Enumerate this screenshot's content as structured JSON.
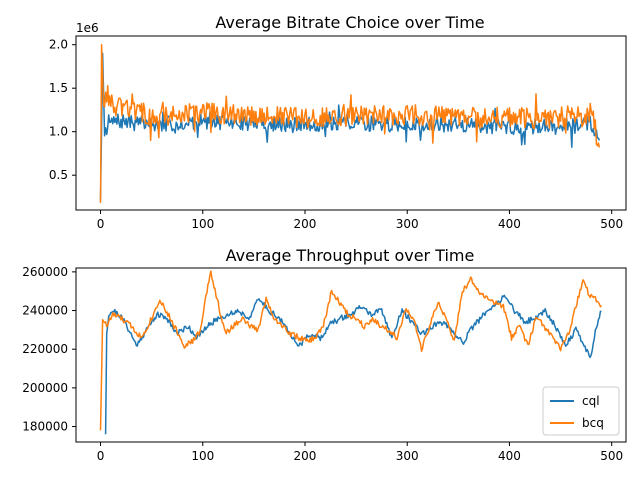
{
  "chart_data": [
    {
      "type": "line",
      "title": "Average Bitrate Choice over Time",
      "xlabel": "",
      "ylabel": "",
      "y_offset_label": "1e6",
      "xlim": [
        -24,
        514
      ],
      "ylim": [
        0.1,
        2.1
      ],
      "y_scale": 1000000,
      "xticks": [
        0,
        100,
        200,
        300,
        400,
        500
      ],
      "yticks": [
        0.5,
        1.0,
        1.5,
        2.0
      ],
      "ytick_labels": [
        "0.5",
        "1.0",
        "1.5",
        "2.0"
      ],
      "grid": false,
      "series": [
        {
          "name": "cql",
          "color": "#1f77b4",
          "base": [
            [
              0,
              0.22
            ],
            [
              2,
              1.9
            ],
            [
              4,
              1.0
            ],
            [
              8,
              1.1
            ],
            [
              20,
              1.12
            ],
            [
              50,
              1.08
            ],
            [
              100,
              1.12
            ],
            [
              150,
              1.1
            ],
            [
              200,
              1.08
            ],
            [
              250,
              1.1
            ],
            [
              300,
              1.08
            ],
            [
              350,
              1.08
            ],
            [
              400,
              1.06
            ],
            [
              450,
              1.06
            ],
            [
              480,
              1.1
            ],
            [
              488,
              0.9
            ]
          ],
          "amplitude": 0.09,
          "seed": 7
        },
        {
          "name": "bcq",
          "color": "#ff7f0e",
          "base": [
            [
              0,
              0.18
            ],
            [
              1,
              2.0
            ],
            [
              3,
              1.3
            ],
            [
              6,
              1.45
            ],
            [
              12,
              1.28
            ],
            [
              30,
              1.25
            ],
            [
              50,
              1.18
            ],
            [
              100,
              1.22
            ],
            [
              150,
              1.18
            ],
            [
              200,
              1.16
            ],
            [
              250,
              1.18
            ],
            [
              300,
              1.2
            ],
            [
              350,
              1.16
            ],
            [
              400,
              1.16
            ],
            [
              450,
              1.14
            ],
            [
              480,
              1.22
            ],
            [
              488,
              0.82
            ]
          ],
          "amplitude": 0.12,
          "seed": 13
        }
      ]
    },
    {
      "type": "line",
      "title": "Average Throughput over Time",
      "xlabel": "",
      "ylabel": "",
      "xlim": [
        -24,
        514
      ],
      "ylim": [
        172000,
        262000
      ],
      "xticks": [
        0,
        100,
        200,
        300,
        400,
        500
      ],
      "yticks": [
        180000,
        200000,
        220000,
        240000,
        260000
      ],
      "ytick_labels": [
        "180000",
        "200000",
        "220000",
        "240000",
        "260000"
      ],
      "legend": "lower-right",
      "grid": false,
      "series": [
        {
          "name": "cql",
          "color": "#1f77b4",
          "points": [
            [
              5,
              176000
            ],
            [
              6,
              228000
            ],
            [
              8,
              238000
            ],
            [
              12,
              240000
            ],
            [
              18,
              238000
            ],
            [
              25,
              233000
            ],
            [
              35,
              222000
            ],
            [
              45,
              230000
            ],
            [
              55,
              238000
            ],
            [
              65,
              236000
            ],
            [
              75,
              228000
            ],
            [
              85,
              232000
            ],
            [
              95,
              226000
            ],
            [
              105,
              232000
            ],
            [
              115,
              236000
            ],
            [
              125,
              238000
            ],
            [
              135,
              240000
            ],
            [
              145,
              236000
            ],
            [
              155,
              246000
            ],
            [
              165,
              240000
            ],
            [
              175,
              236000
            ],
            [
              185,
              228000
            ],
            [
              195,
              222000
            ],
            [
              205,
              228000
            ],
            [
              215,
              226000
            ],
            [
              225,
              233000
            ],
            [
              235,
              236000
            ],
            [
              245,
              238000
            ],
            [
              255,
              242000
            ],
            [
              265,
              238000
            ],
            [
              275,
              240000
            ],
            [
              285,
              226000
            ],
            [
              295,
              240000
            ],
            [
              305,
              234000
            ],
            [
              315,
              228000
            ],
            [
              325,
              232000
            ],
            [
              335,
              234000
            ],
            [
              345,
              228000
            ],
            [
              355,
              224000
            ],
            [
              365,
              232000
            ],
            [
              375,
              238000
            ],
            [
              385,
              242000
            ],
            [
              395,
              248000
            ],
            [
              405,
              240000
            ],
            [
              415,
              234000
            ],
            [
              425,
              236000
            ],
            [
              435,
              240000
            ],
            [
              445,
              232000
            ],
            [
              455,
              222000
            ],
            [
              465,
              230000
            ],
            [
              475,
              220000
            ],
            [
              480,
              216000
            ],
            [
              485,
              232000
            ],
            [
              490,
              240000
            ]
          ],
          "jitter": 1500,
          "seed": 21
        },
        {
          "name": "bcq",
          "color": "#ff7f0e",
          "points": [
            [
              0,
              178000
            ],
            [
              2,
              236000
            ],
            [
              6,
              232000
            ],
            [
              12,
              238000
            ],
            [
              20,
              236000
            ],
            [
              30,
              232000
            ],
            [
              40,
              226000
            ],
            [
              50,
              236000
            ],
            [
              58,
              246000
            ],
            [
              66,
              238000
            ],
            [
              74,
              230000
            ],
            [
              82,
              222000
            ],
            [
              90,
              224000
            ],
            [
              98,
              230000
            ],
            [
              104,
              250000
            ],
            [
              108,
              260000
            ],
            [
              114,
              246000
            ],
            [
              122,
              228000
            ],
            [
              130,
              232000
            ],
            [
              138,
              236000
            ],
            [
              146,
              232000
            ],
            [
              154,
              230000
            ],
            [
              162,
              246000
            ],
            [
              170,
              236000
            ],
            [
              178,
              232000
            ],
            [
              186,
              228000
            ],
            [
              194,
              226000
            ],
            [
              202,
              224000
            ],
            [
              210,
              226000
            ],
            [
              218,
              232000
            ],
            [
              226,
              250000
            ],
            [
              234,
              244000
            ],
            [
              242,
              238000
            ],
            [
              250,
              236000
            ],
            [
              258,
              232000
            ],
            [
              266,
              236000
            ],
            [
              274,
              232000
            ],
            [
              282,
              230000
            ],
            [
              290,
              226000
            ],
            [
              298,
              240000
            ],
            [
              306,
              236000
            ],
            [
              314,
              220000
            ],
            [
              322,
              232000
            ],
            [
              330,
              244000
            ],
            [
              338,
              236000
            ],
            [
              346,
              224000
            ],
            [
              354,
              250000
            ],
            [
              362,
              256000
            ],
            [
              370,
              250000
            ],
            [
              378,
              246000
            ],
            [
              386,
              244000
            ],
            [
              394,
              242000
            ],
            [
              402,
              226000
            ],
            [
              410,
              232000
            ],
            [
              418,
              222000
            ],
            [
              426,
              236000
            ],
            [
              434,
              232000
            ],
            [
              442,
              226000
            ],
            [
              450,
              220000
            ],
            [
              458,
              228000
            ],
            [
              466,
              244000
            ],
            [
              472,
              256000
            ],
            [
              478,
              248000
            ],
            [
              484,
              246000
            ],
            [
              490,
              242000
            ]
          ],
          "jitter": 1500,
          "seed": 33
        }
      ]
    }
  ]
}
